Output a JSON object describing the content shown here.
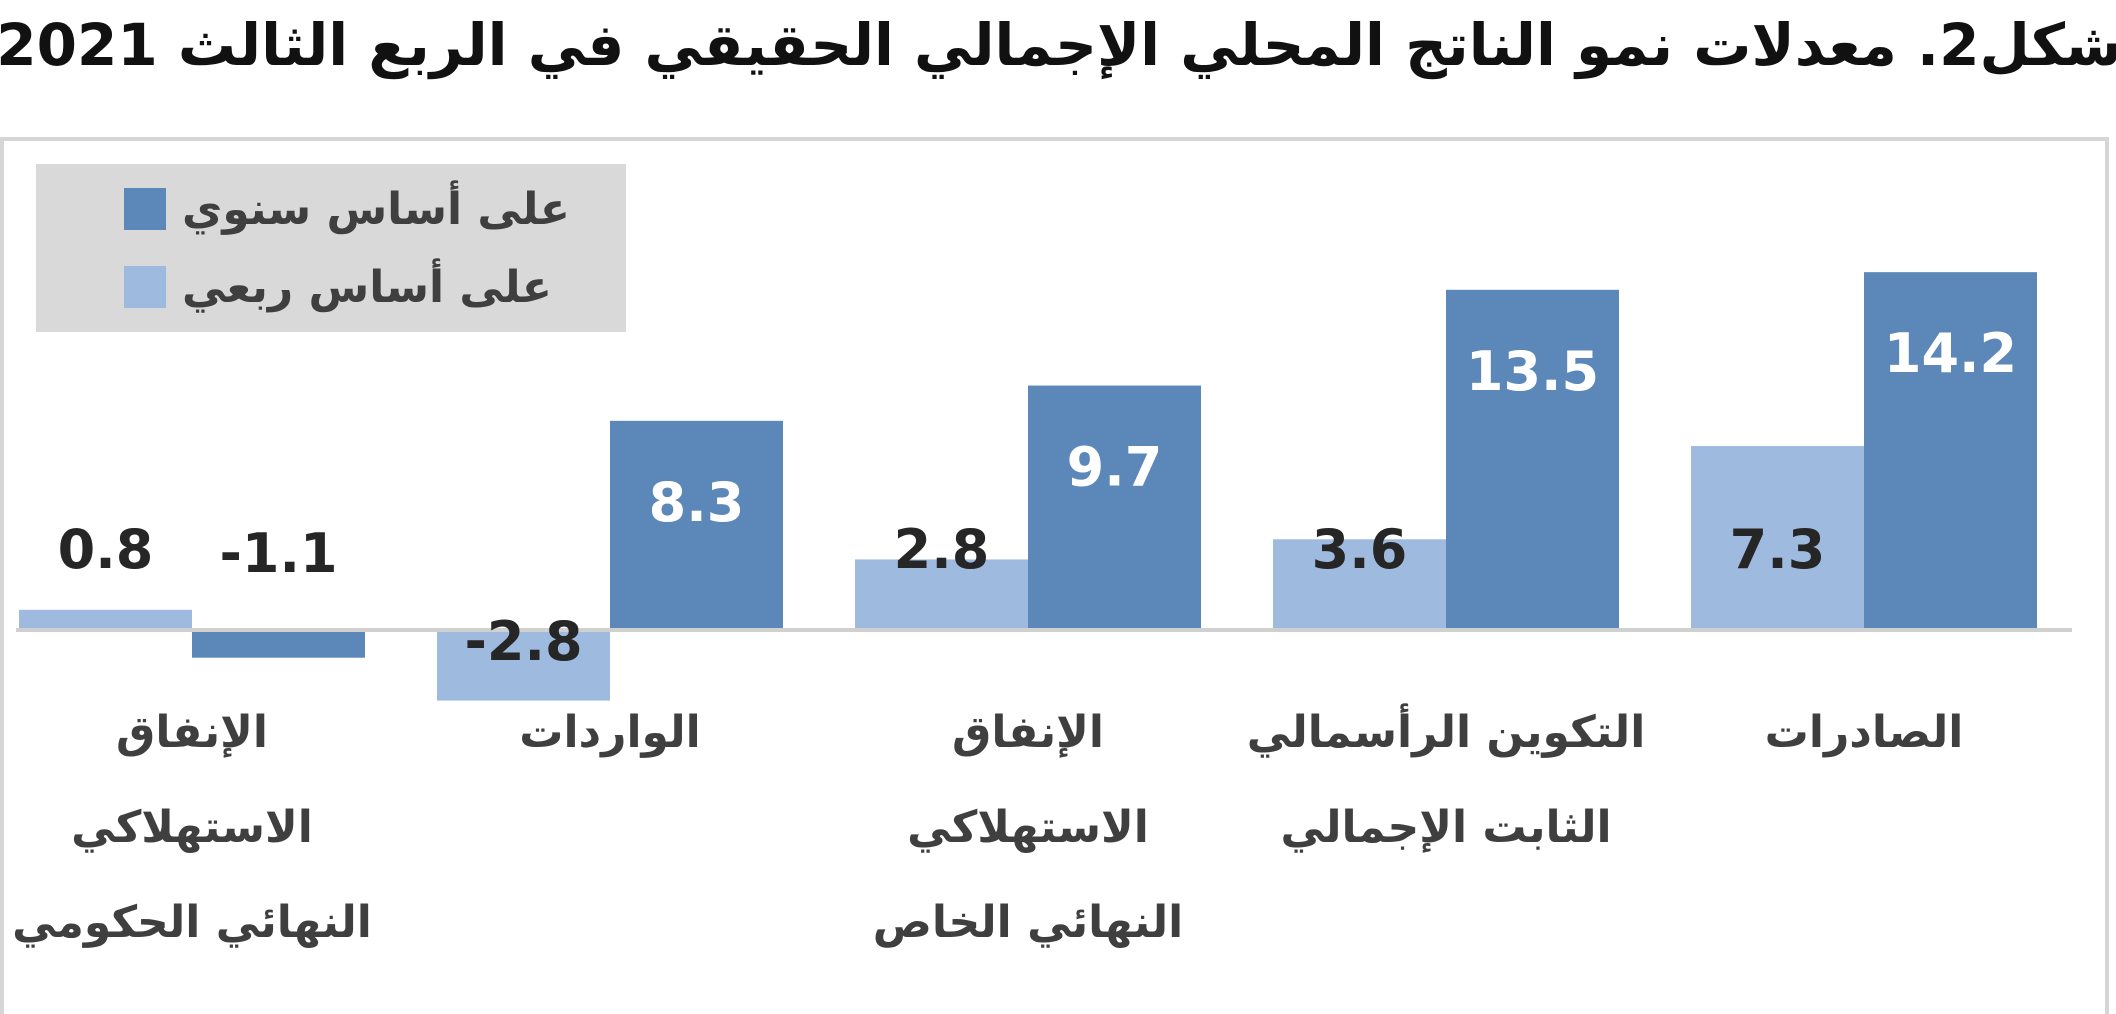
{
  "title": "شكل2. معدلات نمو الناتج المحلي الإجمالي الحقيقي في الربع الثالث 2021",
  "legend": {
    "yearly": "على أساس سنوي",
    "quarterly": "على أساس ربعي"
  },
  "colors": {
    "yearly": "#5b87b9",
    "quarterly": "#9fbadf",
    "axis": "#d0d0d0",
    "label_light": "#ffffff",
    "label_dark": "#262626"
  },
  "categories": [
    "الصادرات",
    "التكوين الرأسمالي الثابت الإجمالي",
    "الإنفاق الاستهلاكي النهائي الخاص",
    "الواردات",
    "الإنفاق الاستهلاكي النهائي الحكومي"
  ],
  "category_lines": [
    [
      "الصادرات"
    ],
    [
      "التكوين الرأسمالي",
      "الثابت الإجمالي"
    ],
    [
      "الإنفاق",
      "الاستهلاكي",
      "النهائي الخاص"
    ],
    [
      "الواردات"
    ],
    [
      "الإنفاق",
      "الاستهلاكي",
      "النهائي الحكومي"
    ]
  ],
  "value_labels": {
    "yearly": [
      "14.2",
      "13.5",
      "9.7",
      "8.3",
      "-1.1"
    ],
    "quarterly": [
      "7.3",
      "3.6",
      "2.8",
      "-2.8",
      "0.8"
    ]
  },
  "chart_data": {
    "type": "bar",
    "title": "شكل2. معدلات نمو الناتج المحلي الإجمالي الحقيقي في الربع الثالث 2021",
    "categories": [
      "الصادرات",
      "التكوين الرأسمالي الثابت الإجمالي",
      "الإنفاق الاستهلاكي النهائي الخاص",
      "الواردات",
      "الإنفاق الاستهلاكي النهائي الحكومي"
    ],
    "series": [
      {
        "name": "على أساس سنوي",
        "values": [
          14.2,
          13.5,
          9.7,
          8.3,
          -1.1
        ]
      },
      {
        "name": "على أساس ربعي",
        "values": [
          7.3,
          3.6,
          2.8,
          -2.8,
          0.8
        ]
      }
    ],
    "ylim": [
      -3.0,
      14.2
    ],
    "category_order": "right-to-left",
    "grid": false,
    "legend": "top-left"
  }
}
